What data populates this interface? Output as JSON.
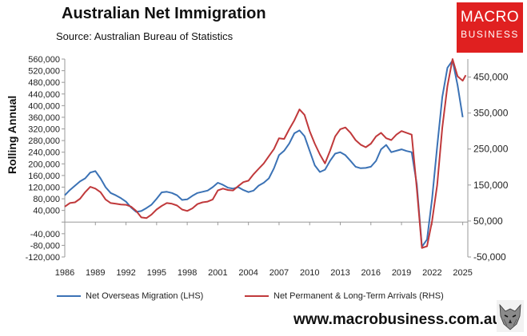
{
  "header": {
    "title": "Australian Net Immigration",
    "subtitle": "Source: Australian Bureau of Statistics"
  },
  "logo": {
    "line1": "MACRO",
    "line2": "BUSINESS"
  },
  "footer": {
    "url": "www.macrobusiness.com.au"
  },
  "colors": {
    "lhs": "#3b72b5",
    "rhs": "#c0393b",
    "logo_bg": "#e02020"
  },
  "icons": {
    "wolf": "wolf-head-icon"
  },
  "chart_data": {
    "type": "line",
    "title": "Australian Net Immigration",
    "ylabel": "Rolling Annual",
    "xlabel": "",
    "x_ticks": [
      "1986",
      "1989",
      "1992",
      "1995",
      "1998",
      "2001",
      "2004",
      "2007",
      "2010",
      "2013",
      "2016",
      "2019",
      "2022",
      "2025"
    ],
    "xlim": [
      1986,
      2025.5
    ],
    "y_left": {
      "lim": [
        -120000,
        560000
      ],
      "ticks": [
        -120000,
        -80000,
        -40000,
        0,
        40000,
        80000,
        120000,
        160000,
        200000,
        240000,
        280000,
        320000,
        360000,
        400000,
        440000,
        480000,
        520000,
        560000
      ],
      "tick_labels": [
        "-120,000",
        "-80,000",
        "-40,000",
        "",
        "40,000",
        "80,000",
        "120,000",
        "160,000",
        "200,000",
        "240,000",
        "280,000",
        "320,000",
        "360,000",
        "400,000",
        "440,000",
        "480,000",
        "520,000",
        "560,000"
      ]
    },
    "y_right": {
      "lim": [
        -50000,
        500000
      ],
      "ticks": [
        -50000,
        50000,
        150000,
        250000,
        350000,
        450000
      ],
      "tick_labels": [
        "-50,000",
        "50,000",
        "150,000",
        "250,000",
        "350,000",
        "450,000"
      ]
    },
    "grid": false,
    "legend": "bottom",
    "series": [
      {
        "name": "Net Overseas Migration (LHS)",
        "axis": "left",
        "color": "#3b72b5",
        "x": [
          1986.0,
          1986.5,
          1987.0,
          1987.5,
          1988.0,
          1988.5,
          1989.0,
          1989.5,
          1990.0,
          1990.5,
          1991.0,
          1991.5,
          1992.0,
          1992.5,
          1993.0,
          1993.5,
          1994.0,
          1994.5,
          1995.0,
          1995.5,
          1996.0,
          1996.5,
          1997.0,
          1997.5,
          1998.0,
          1998.5,
          1999.0,
          1999.5,
          2000.0,
          2000.5,
          2001.0,
          2001.5,
          2002.0,
          2002.5,
          2003.0,
          2003.5,
          2004.0,
          2004.5,
          2005.0,
          2005.5,
          2006.0,
          2006.5,
          2007.0,
          2007.5,
          2008.0,
          2008.5,
          2009.0,
          2009.5,
          2010.0,
          2010.5,
          2011.0,
          2011.5,
          2012.0,
          2012.5,
          2013.0,
          2013.5,
          2014.0,
          2014.5,
          2015.0,
          2015.5,
          2016.0,
          2016.5,
          2017.0,
          2017.5,
          2018.0,
          2018.5,
          2019.0,
          2019.5,
          2020.0,
          2020.5,
          2021.0,
          2021.5,
          2022.0,
          2022.5,
          2023.0,
          2023.5,
          2024.0,
          2024.5,
          2025.0
        ],
        "values": [
          92000,
          110000,
          125000,
          140000,
          150000,
          170000,
          175000,
          150000,
          120000,
          100000,
          92000,
          82000,
          70000,
          50000,
          35000,
          38000,
          48000,
          60000,
          80000,
          102000,
          104000,
          100000,
          92000,
          76000,
          78000,
          90000,
          100000,
          104000,
          108000,
          120000,
          135000,
          128000,
          118000,
          115000,
          120000,
          110000,
          103000,
          108000,
          125000,
          135000,
          150000,
          185000,
          230000,
          245000,
          270000,
          305000,
          315000,
          295000,
          245000,
          195000,
          172000,
          180000,
          210000,
          235000,
          240000,
          230000,
          210000,
          190000,
          185000,
          186000,
          190000,
          210000,
          250000,
          265000,
          240000,
          245000,
          250000,
          244000,
          240000,
          130000,
          -85000,
          -60000,
          80000,
          260000,
          430000,
          530000,
          555000,
          470000,
          360000
        ]
      },
      {
        "name": "Net Permanent & Long-Term Arrivals (RHS)",
        "axis": "right",
        "color": "#c0393b",
        "x": [
          1986.0,
          1986.5,
          1987.0,
          1987.5,
          1988.0,
          1988.5,
          1989.0,
          1989.5,
          1990.0,
          1990.5,
          1991.0,
          1991.5,
          1992.0,
          1992.5,
          1993.0,
          1993.5,
          1994.0,
          1994.5,
          1995.0,
          1995.5,
          1996.0,
          1996.5,
          1997.0,
          1997.5,
          1998.0,
          1998.5,
          1999.0,
          1999.5,
          2000.0,
          2000.5,
          2001.0,
          2001.5,
          2002.0,
          2002.5,
          2003.0,
          2003.5,
          2004.0,
          2004.5,
          2005.0,
          2005.5,
          2006.0,
          2006.5,
          2007.0,
          2007.5,
          2008.0,
          2008.5,
          2009.0,
          2009.5,
          2010.0,
          2010.5,
          2011.0,
          2011.5,
          2012.0,
          2012.5,
          2013.0,
          2013.5,
          2014.0,
          2014.5,
          2015.0,
          2015.5,
          2016.0,
          2016.5,
          2017.0,
          2017.5,
          2018.0,
          2018.5,
          2019.0,
          2019.5,
          2020.0,
          2020.5,
          2021.0,
          2021.5,
          2022.0,
          2022.5,
          2023.0,
          2023.5,
          2024.0,
          2024.5,
          2025.0,
          2025.3
        ],
        "values": [
          90000,
          100000,
          102000,
          112000,
          130000,
          145000,
          140000,
          130000,
          110000,
          100000,
          98000,
          96000,
          95000,
          90000,
          78000,
          60000,
          58000,
          68000,
          82000,
          92000,
          100000,
          98000,
          93000,
          82000,
          78000,
          85000,
          97000,
          102000,
          104000,
          110000,
          135000,
          140000,
          136000,
          135000,
          147000,
          158000,
          162000,
          180000,
          195000,
          210000,
          230000,
          250000,
          280000,
          278000,
          305000,
          330000,
          360000,
          345000,
          300000,
          265000,
          235000,
          210000,
          245000,
          285000,
          305000,
          310000,
          295000,
          275000,
          262000,
          255000,
          265000,
          285000,
          295000,
          280000,
          275000,
          290000,
          300000,
          295000,
          290000,
          140000,
          -25000,
          -20000,
          50000,
          150000,
          310000,
          425000,
          500000,
          452000,
          440000,
          455000
        ]
      }
    ]
  }
}
